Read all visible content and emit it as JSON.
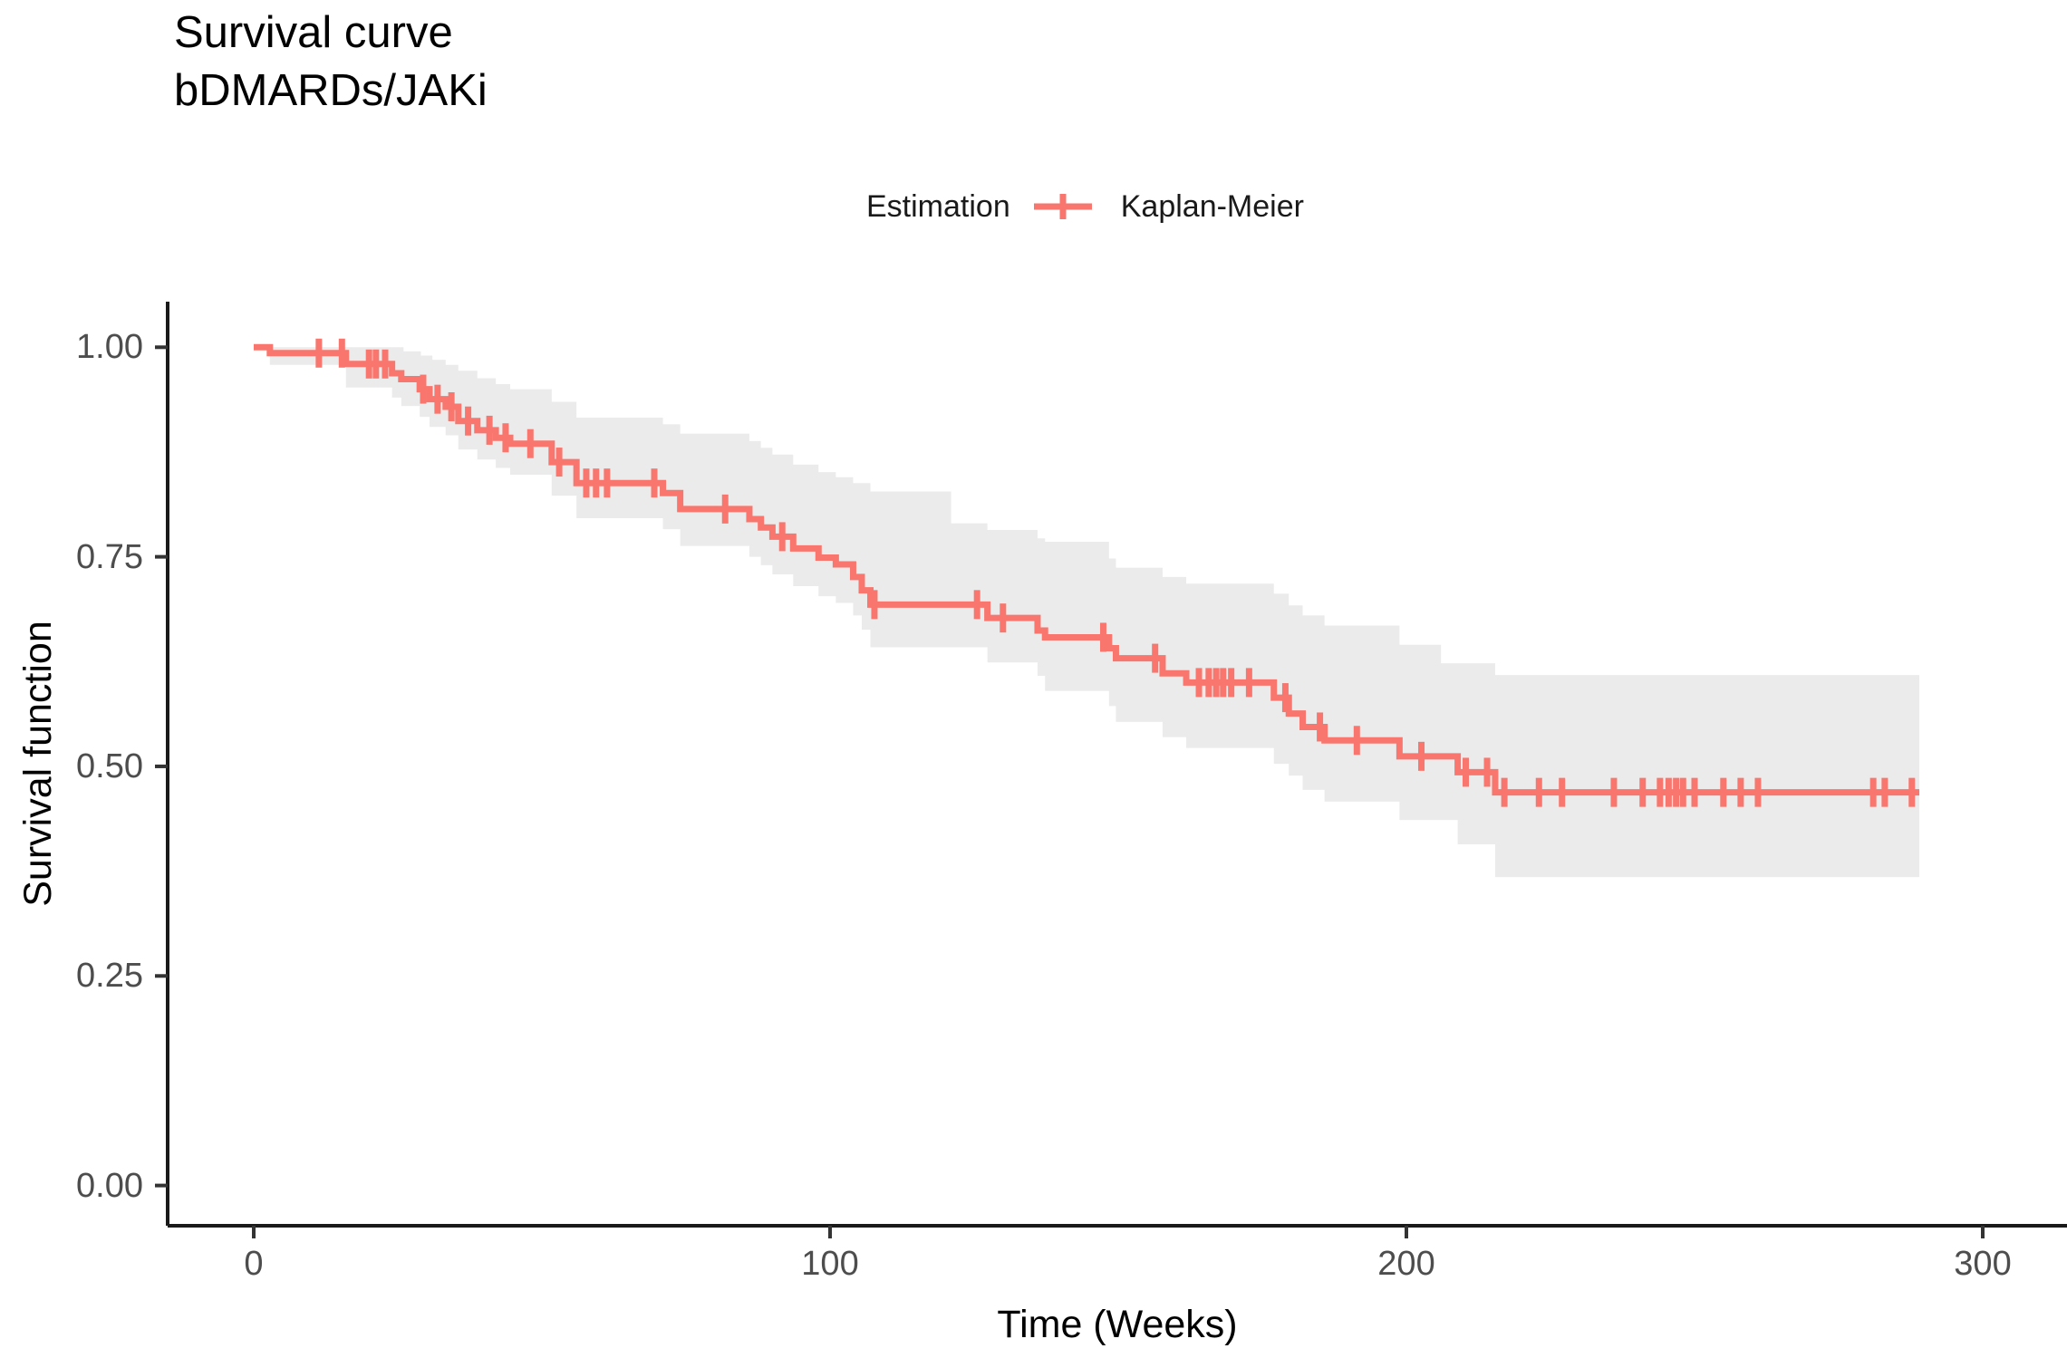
{
  "title": {
    "line1": "Survival curve",
    "line2": "bDMARDs/JAKi"
  },
  "legend": {
    "title": "Estimation",
    "entry": "Kaplan-Meier",
    "symbol": "line-with-plus-cross"
  },
  "axes": {
    "y": {
      "title": "Survival function",
      "ticks": [
        "1.00",
        "0.75",
        "0.50",
        "0.25",
        "0.00"
      ],
      "tick_values": [
        1.0,
        0.75,
        0.5,
        0.25,
        0.0
      ]
    },
    "x": {
      "title": "Time (Weeks)",
      "ticks": [
        "0",
        "100",
        "200",
        "300"
      ],
      "tick_values": [
        0,
        100,
        200,
        300
      ]
    }
  },
  "colors": {
    "curve": "#F8766D",
    "ribbon": "#EBEBEB",
    "axis_line": "#1a1a1a",
    "tick_label": "#4d4d4d",
    "text": "#000000"
  },
  "chart_data": {
    "type": "line",
    "subtype": "kaplan-meier-step",
    "title": "Survival curve bDMARDs/JAKi",
    "xlabel": "Time (Weeks)",
    "ylabel": "Survival function",
    "xlim": [
      0,
      310
    ],
    "ylim": [
      0.0,
      1.05
    ],
    "grid": false,
    "legend_position": "top-center",
    "end_time": 289,
    "series": [
      {
        "name": "Kaplan-Meier",
        "color": "#F8766D",
        "ci_color": "#EBEBEB"
      }
    ],
    "km_steps": [
      [
        0,
        1.0
      ],
      [
        2.8,
        0.993
      ],
      [
        16,
        0.98
      ],
      [
        24,
        0.969
      ],
      [
        25.6,
        0.962
      ],
      [
        28.8,
        0.95
      ],
      [
        30.5,
        0.938
      ],
      [
        33.3,
        0.929
      ],
      [
        35.5,
        0.912
      ],
      [
        38.8,
        0.901
      ],
      [
        42,
        0.892
      ],
      [
        44.5,
        0.885
      ],
      [
        51.7,
        0.863
      ],
      [
        56,
        0.838
      ],
      [
        71,
        0.826
      ],
      [
        74,
        0.807
      ],
      [
        86,
        0.795
      ],
      [
        88,
        0.785
      ],
      [
        90,
        0.774
      ],
      [
        93.6,
        0.76
      ],
      [
        98,
        0.749
      ],
      [
        101,
        0.741
      ],
      [
        104,
        0.726
      ],
      [
        105.5,
        0.71
      ],
      [
        107,
        0.693
      ],
      [
        127.3,
        0.677
      ],
      [
        136,
        0.662
      ],
      [
        137.3,
        0.654
      ],
      [
        148.4,
        0.641
      ],
      [
        149.6,
        0.629
      ],
      [
        157.7,
        0.611
      ],
      [
        161.8,
        0.6
      ],
      [
        177,
        0.582
      ],
      [
        179.6,
        0.563
      ],
      [
        182,
        0.547
      ],
      [
        185.8,
        0.531
      ],
      [
        198.8,
        0.512
      ],
      [
        208.9,
        0.493
      ],
      [
        215.4,
        0.469
      ]
    ],
    "censor_marks": [
      [
        11.3,
        0.993
      ],
      [
        15.3,
        0.993
      ],
      [
        20,
        0.98
      ],
      [
        21.2,
        0.98
      ],
      [
        22.8,
        0.98
      ],
      [
        29.4,
        0.95
      ],
      [
        31.9,
        0.938
      ],
      [
        34.3,
        0.929
      ],
      [
        37.2,
        0.912
      ],
      [
        40.9,
        0.901
      ],
      [
        43.7,
        0.892
      ],
      [
        48,
        0.885
      ],
      [
        53,
        0.863
      ],
      [
        57.7,
        0.838
      ],
      [
        59.4,
        0.838
      ],
      [
        61.3,
        0.838
      ],
      [
        69.5,
        0.838
      ],
      [
        81.8,
        0.807
      ],
      [
        91.7,
        0.774
      ],
      [
        107.7,
        0.693
      ],
      [
        125.5,
        0.693
      ],
      [
        130,
        0.677
      ],
      [
        147.4,
        0.654
      ],
      [
        156.4,
        0.629
      ],
      [
        164,
        0.6
      ],
      [
        165.7,
        0.6
      ],
      [
        167,
        0.6
      ],
      [
        168.2,
        0.6
      ],
      [
        169.6,
        0.6
      ],
      [
        172.7,
        0.6
      ],
      [
        179,
        0.582
      ],
      [
        185,
        0.547
      ],
      [
        191.4,
        0.531
      ],
      [
        202.6,
        0.512
      ],
      [
        210.3,
        0.493
      ],
      [
        214,
        0.493
      ],
      [
        217,
        0.469
      ],
      [
        223,
        0.469
      ],
      [
        227,
        0.469
      ],
      [
        236,
        0.469
      ],
      [
        241,
        0.469
      ],
      [
        244,
        0.469
      ],
      [
        245.5,
        0.469
      ],
      [
        246.8,
        0.469
      ],
      [
        248,
        0.469
      ],
      [
        250,
        0.469
      ],
      [
        255,
        0.469
      ],
      [
        258,
        0.469
      ],
      [
        261,
        0.469
      ],
      [
        281,
        0.469
      ],
      [
        283,
        0.469
      ],
      [
        287.7,
        0.469
      ]
    ],
    "ci_upper": [
      [
        0,
        1.0
      ],
      [
        26,
        0.995
      ],
      [
        29,
        0.99
      ],
      [
        31,
        0.985
      ],
      [
        33.3,
        0.979
      ],
      [
        35.5,
        0.972
      ],
      [
        38.8,
        0.963
      ],
      [
        42,
        0.956
      ],
      [
        44.5,
        0.95
      ],
      [
        51.7,
        0.935
      ],
      [
        56,
        0.916
      ],
      [
        71,
        0.908
      ],
      [
        74,
        0.897
      ],
      [
        86,
        0.888
      ],
      [
        88,
        0.88
      ],
      [
        90,
        0.872
      ],
      [
        93.6,
        0.86
      ],
      [
        98,
        0.851
      ],
      [
        101,
        0.845
      ],
      [
        104,
        0.838
      ],
      [
        107,
        0.828
      ],
      [
        121,
        0.79
      ],
      [
        127.3,
        0.782
      ],
      [
        136,
        0.772
      ],
      [
        137.3,
        0.768
      ],
      [
        148.4,
        0.748
      ],
      [
        149.6,
        0.737
      ],
      [
        157.7,
        0.726
      ],
      [
        161.8,
        0.718
      ],
      [
        177,
        0.706
      ],
      [
        179.6,
        0.692
      ],
      [
        182,
        0.68
      ],
      [
        185.8,
        0.668
      ],
      [
        198.8,
        0.645
      ],
      [
        206,
        0.623
      ],
      [
        215.4,
        0.609
      ]
    ],
    "ci_lower": [
      [
        0,
        1.0
      ],
      [
        2.8,
        0.979
      ],
      [
        16,
        0.952
      ],
      [
        24,
        0.94
      ],
      [
        25.6,
        0.93
      ],
      [
        28.8,
        0.917
      ],
      [
        30.5,
        0.905
      ],
      [
        33.3,
        0.895
      ],
      [
        35.5,
        0.878
      ],
      [
        38.8,
        0.866
      ],
      [
        42,
        0.856
      ],
      [
        44.5,
        0.848
      ],
      [
        51.7,
        0.823
      ],
      [
        56,
        0.796
      ],
      [
        71,
        0.783
      ],
      [
        74,
        0.763
      ],
      [
        86,
        0.75
      ],
      [
        88,
        0.74
      ],
      [
        90,
        0.729
      ],
      [
        93.6,
        0.715
      ],
      [
        98,
        0.703
      ],
      [
        101,
        0.695
      ],
      [
        104,
        0.68
      ],
      [
        105.5,
        0.663
      ],
      [
        107,
        0.642
      ],
      [
        127.3,
        0.624
      ],
      [
        136,
        0.608
      ],
      [
        137.3,
        0.59
      ],
      [
        148.4,
        0.572
      ],
      [
        149.6,
        0.553
      ],
      [
        157.7,
        0.535
      ],
      [
        161.8,
        0.522
      ],
      [
        177,
        0.503
      ],
      [
        179.6,
        0.489
      ],
      [
        182,
        0.472
      ],
      [
        185.8,
        0.458
      ],
      [
        198.8,
        0.436
      ],
      [
        208.9,
        0.407
      ],
      [
        215.4,
        0.368
      ]
    ]
  }
}
